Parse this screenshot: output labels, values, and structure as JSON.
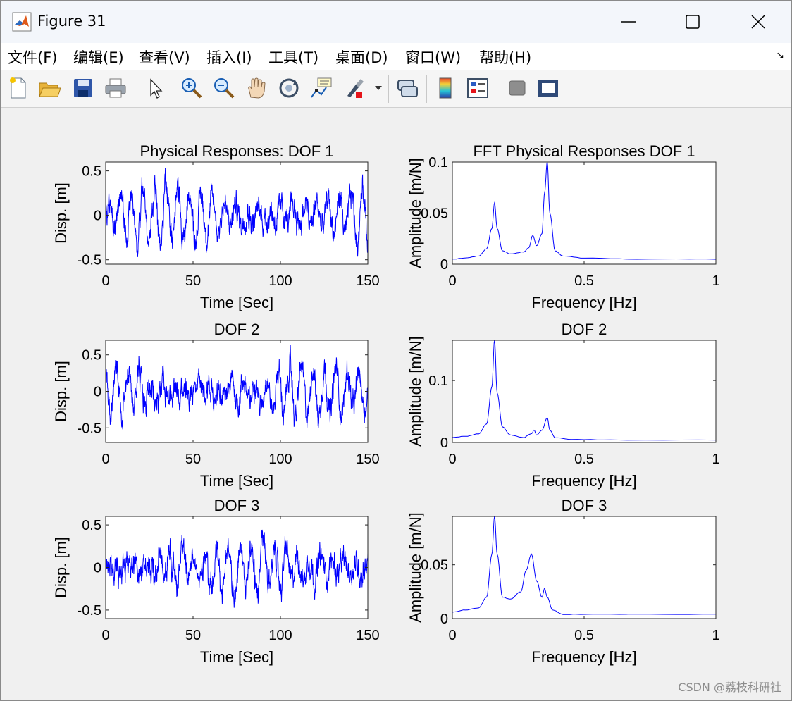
{
  "window": {
    "title": "Figure 31",
    "icon": "matlab-icon",
    "controls": [
      "minimize-icon",
      "maximize-icon",
      "close-icon"
    ]
  },
  "menu": {
    "items": [
      "文件(F)",
      "编辑(E)",
      "查看(V)",
      "插入(I)",
      "工具(T)",
      "桌面(D)",
      "窗口(W)",
      "帮助(H)"
    ],
    "more_icon": "dock-arrow-icon"
  },
  "toolbar": {
    "buttons": [
      "new-figure-icon",
      "open-file-icon",
      "save-icon",
      "print-icon",
      "edit-plot-icon",
      "zoom-in-icon",
      "zoom-out-icon",
      "pan-icon",
      "rotate-3d-icon",
      "data-cursor-icon",
      "brush-icon",
      "brush-dropdown-icon",
      "link-plot-icon",
      "colorbar-icon",
      "legend-icon",
      "hide-plot-tools-icon",
      "show-plot-tools-icon"
    ]
  },
  "colors": {
    "series": "#0000ff",
    "axes": "#262626",
    "background": "#f0f0f0"
  },
  "watermark": "CSDN @荔枝科研社",
  "chart_data": [
    {
      "type": "line",
      "title": "Physical Responses: DOF 1",
      "xlabel": "Time [Sec]",
      "ylabel": "Disp. [m]",
      "xlim": [
        0,
        150
      ],
      "ylim": [
        -0.55,
        0.6
      ],
      "xticks": [
        0,
        50,
        100,
        150
      ],
      "yticks": [
        -0.5,
        0,
        0.5
      ],
      "ytick_labels": [
        "-0.5",
        "0",
        "0.5"
      ],
      "series": [
        {
          "signal": "random vibration",
          "color": "#0000ff",
          "amplitude_range": [
            -0.55,
            0.6
          ]
        }
      ]
    },
    {
      "type": "line",
      "title": "FFT Physical Responses DOF 1",
      "xlabel": "Frequency [Hz]",
      "ylabel": "Amplitude [m/N]",
      "xlim": [
        0,
        1
      ],
      "ylim": [
        0,
        0.1
      ],
      "xticks": [
        0,
        0.5,
        1
      ],
      "yticks": [
        0,
        0.05,
        0.1
      ],
      "xtick_labels": [
        "0",
        "0.5",
        "1"
      ],
      "ytick_labels": [
        "0",
        "0.05",
        "0.1"
      ],
      "series": [
        {
          "color": "#0000ff",
          "x": [
            0,
            0.05,
            0.1,
            0.13,
            0.15,
            0.16,
            0.17,
            0.19,
            0.22,
            0.27,
            0.29,
            0.305,
            0.32,
            0.34,
            0.35,
            0.36,
            0.37,
            0.39,
            0.42,
            0.5,
            0.7,
            1.0
          ],
          "y": [
            0.005,
            0.006,
            0.008,
            0.015,
            0.035,
            0.06,
            0.035,
            0.013,
            0.01,
            0.012,
            0.016,
            0.028,
            0.018,
            0.03,
            0.07,
            0.1,
            0.05,
            0.013,
            0.008,
            0.006,
            0.005,
            0.005
          ]
        }
      ]
    },
    {
      "type": "line",
      "title": "DOF 2",
      "xlabel": "Time [Sec]",
      "ylabel": "Disp. [m]",
      "xlim": [
        0,
        150
      ],
      "ylim": [
        -0.7,
        0.7
      ],
      "xticks": [
        0,
        50,
        100,
        150
      ],
      "yticks": [
        -0.5,
        0,
        0.5
      ],
      "ytick_labels": [
        "-0.5",
        "0",
        "0.5"
      ],
      "series": [
        {
          "signal": "random vibration",
          "color": "#0000ff",
          "amplitude_range": [
            -0.7,
            0.7
          ]
        }
      ]
    },
    {
      "type": "line",
      "title": "DOF 2",
      "xlabel": "Frequency [Hz]",
      "ylabel": "Amplitude [m/N]",
      "xlim": [
        0,
        1
      ],
      "ylim": [
        0,
        0.165
      ],
      "xticks": [
        0,
        0.5,
        1
      ],
      "yticks": [
        0,
        0.1
      ],
      "xtick_labels": [
        "0",
        "0.5",
        "1"
      ],
      "ytick_labels": [
        "0",
        "0.1"
      ],
      "series": [
        {
          "color": "#0000ff",
          "x": [
            0,
            0.05,
            0.1,
            0.13,
            0.15,
            0.16,
            0.17,
            0.19,
            0.22,
            0.27,
            0.3,
            0.31,
            0.32,
            0.34,
            0.36,
            0.37,
            0.39,
            0.45,
            0.6,
            1.0
          ],
          "y": [
            0.008,
            0.01,
            0.014,
            0.03,
            0.09,
            0.165,
            0.08,
            0.025,
            0.012,
            0.008,
            0.014,
            0.02,
            0.012,
            0.02,
            0.04,
            0.02,
            0.008,
            0.005,
            0.004,
            0.004
          ]
        }
      ]
    },
    {
      "type": "line",
      "title": "DOF 3",
      "xlabel": "Time [Sec]",
      "ylabel": "Disp. [m]",
      "xlim": [
        0,
        150
      ],
      "ylim": [
        -0.6,
        0.6
      ],
      "xticks": [
        0,
        50,
        100,
        150
      ],
      "yticks": [
        -0.5,
        0,
        0.5
      ],
      "ytick_labels": [
        "-0.5",
        "0",
        "0.5"
      ],
      "series": [
        {
          "signal": "random vibration",
          "color": "#0000ff",
          "amplitude_range": [
            -0.6,
            0.6
          ]
        }
      ]
    },
    {
      "type": "line",
      "title": "DOF 3",
      "xlabel": "Frequency [Hz]",
      "ylabel": "Amplitude [m/N]",
      "xlim": [
        0,
        1
      ],
      "ylim": [
        0,
        0.095
      ],
      "xticks": [
        0,
        0.5,
        1
      ],
      "yticks": [
        0,
        0.05
      ],
      "xtick_labels": [
        "0",
        "0.5",
        "1"
      ],
      "ytick_labels": [
        "0",
        "0.05"
      ],
      "series": [
        {
          "color": "#0000ff",
          "x": [
            0,
            0.05,
            0.1,
            0.13,
            0.15,
            0.16,
            0.17,
            0.19,
            0.22,
            0.26,
            0.28,
            0.3,
            0.32,
            0.34,
            0.35,
            0.36,
            0.38,
            0.42,
            0.5,
            0.7,
            1.0
          ],
          "y": [
            0.006,
            0.008,
            0.01,
            0.02,
            0.06,
            0.095,
            0.06,
            0.02,
            0.018,
            0.025,
            0.045,
            0.06,
            0.035,
            0.02,
            0.028,
            0.02,
            0.008,
            0.004,
            0.004,
            0.004,
            0.004
          ]
        }
      ]
    }
  ]
}
